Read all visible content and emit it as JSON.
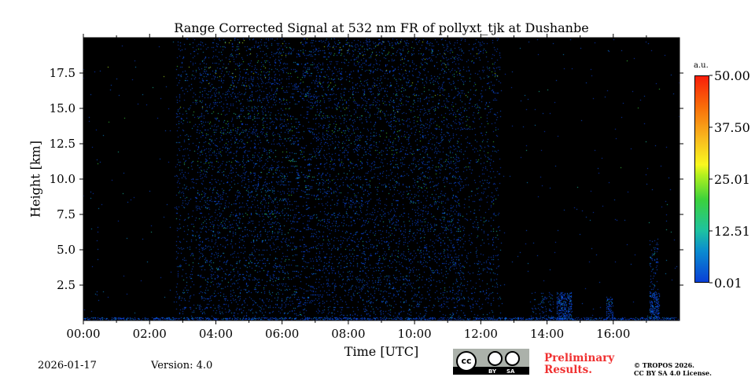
{
  "chart_data": {
    "type": "heatmap",
    "title": "Range Corrected Signal at 532 nm FR of pollyxt_tjk at Dushanbe",
    "xlabel": "Time [UTC]",
    "ylabel": "Height [km]",
    "xlim_hours": [
      0,
      18
    ],
    "ylim_km": [
      0,
      20
    ],
    "xticks": [
      {
        "v": 0,
        "label": "00:00"
      },
      {
        "v": 2,
        "label": "02:00"
      },
      {
        "v": 4,
        "label": "04:00"
      },
      {
        "v": 6,
        "label": "06:00"
      },
      {
        "v": 8,
        "label": "08:00"
      },
      {
        "v": 10,
        "label": "10:00"
      },
      {
        "v": 12,
        "label": "12:00"
      },
      {
        "v": 14,
        "label": "14:00"
      },
      {
        "v": 16,
        "label": "16:00"
      }
    ],
    "yticks": [
      {
        "v": 2.5,
        "label": "2.5"
      },
      {
        "v": 5,
        "label": "5.0"
      },
      {
        "v": 7.5,
        "label": "7.5"
      },
      {
        "v": 10,
        "label": "10.0"
      },
      {
        "v": 12.5,
        "label": "12.5"
      },
      {
        "v": 15,
        "label": "15.0"
      },
      {
        "v": 17.5,
        "label": "17.5"
      }
    ],
    "colorbar": {
      "unit": "a.u.",
      "range": [
        0.01,
        50
      ],
      "ticks": [
        "0.01",
        "12.51",
        "25.01",
        "37.50",
        "50.00"
      ]
    },
    "regions": [
      {
        "t": [
          2.8,
          12.6
        ],
        "h": [
          0.3,
          20
        ],
        "density": 0.45,
        "level": 6
      },
      {
        "t": [
          3.5,
          11.5
        ],
        "h": [
          0.3,
          20
        ],
        "density": 0.25,
        "level": 9
      },
      {
        "t": [
          0,
          18
        ],
        "h": [
          0,
          0.2
        ],
        "density": 0.9,
        "level": 3
      },
      {
        "t": [
          0,
          18
        ],
        "h": [
          0.2,
          20
        ],
        "density": 0.004,
        "level": 4
      },
      {
        "t": [
          14.3,
          14.75
        ],
        "h": [
          0,
          2
        ],
        "density": 0.8,
        "level": 3
      },
      {
        "t": [
          13.5,
          14.2
        ],
        "h": [
          0,
          2
        ],
        "density": 0.15,
        "level": 3
      },
      {
        "t": [
          15.8,
          16
        ],
        "h": [
          0,
          1.7
        ],
        "density": 0.6,
        "level": 3
      },
      {
        "t": [
          17.1,
          17.4
        ],
        "h": [
          0,
          2
        ],
        "density": 0.8,
        "level": 3
      },
      {
        "t": [
          17.1,
          17.35
        ],
        "h": [
          2,
          5.8
        ],
        "density": 0.2,
        "level": 3
      }
    ]
  },
  "footer": {
    "date": "2026-01-17",
    "version": "Version: 4.0",
    "preliminary": "Preliminary Results.",
    "copyright_line1": "© TROPOS 2026.",
    "copyright_line2": "CC BY SA 4.0 License.",
    "cc_by": "BY",
    "cc_sa": "SA",
    "cc": "cc"
  }
}
